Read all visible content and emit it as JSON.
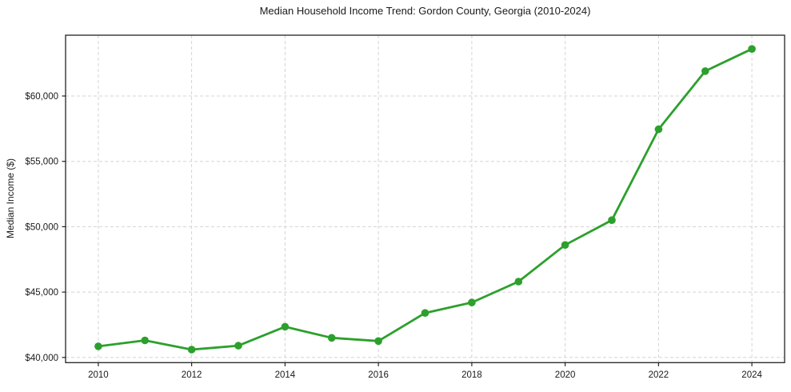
{
  "chart_data": {
    "type": "line",
    "title": "Median Household Income Trend: Gordon County, Georgia (2010-2024)",
    "xlabel": "",
    "ylabel": "Median Income ($)",
    "x": [
      2010,
      2011,
      2012,
      2013,
      2014,
      2015,
      2016,
      2017,
      2018,
      2019,
      2020,
      2021,
      2022,
      2023,
      2024
    ],
    "series": [
      {
        "name": "Median Household Income",
        "values": [
          40850,
          41300,
          40600,
          40900,
          42350,
          41500,
          41250,
          43400,
          44200,
          45800,
          48600,
          50500,
          57450,
          61900,
          63600
        ],
        "color": "#2ca02c"
      }
    ],
    "xlim": [
      2009.3,
      2024.7
    ],
    "ylim": [
      39600,
      64650
    ],
    "xticks": [
      2010,
      2012,
      2014,
      2016,
      2018,
      2020,
      2022,
      2024
    ],
    "xtick_labels": [
      "2010",
      "2012",
      "2014",
      "2016",
      "2018",
      "2020",
      "2022",
      "2024"
    ],
    "yticks": [
      40000,
      45000,
      50000,
      55000,
      60000
    ],
    "ytick_labels": [
      "$40,000",
      "$45,000",
      "$50,000",
      "$55,000",
      "$60,000"
    ],
    "grid": true,
    "grid_style": "dashed",
    "legend": "none",
    "styles": {
      "line_color": "#2ca02c",
      "marker_color": "#2ca02c",
      "line_width": 2.8,
      "marker_radius": 4.8,
      "grid_color": "#d4d4d4",
      "spine_color": "#222222",
      "tick_color": "#222222",
      "text_color": "#1a1a1a"
    }
  }
}
